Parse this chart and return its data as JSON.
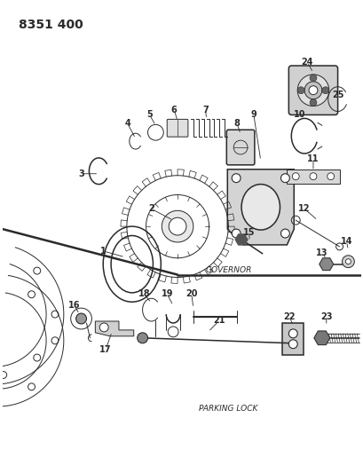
{
  "title": "8351 400",
  "governor_label": "GOVERNOR",
  "parking_label": "PARKING LOCK",
  "bg_color": "#ffffff",
  "lc": "#2a2a2a",
  "fig_w": 4.1,
  "fig_h": 5.33,
  "dpi": 100
}
